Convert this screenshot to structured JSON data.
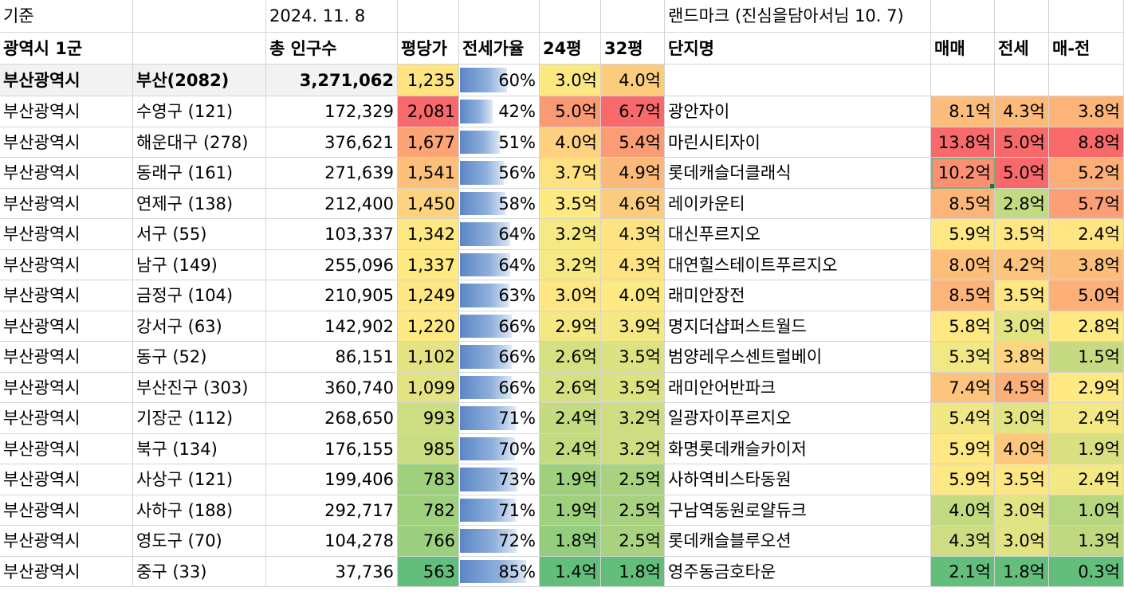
{
  "header": {
    "label_basis": "기준",
    "date": "2024. 11. 8",
    "landmark_note": "랜드마크 (진심을담아서님 10. 7)"
  },
  "columns": [
    "광역시 1군",
    "",
    "총 인구수",
    "평당가",
    "전세가율",
    "24평",
    "32평",
    "단지명",
    "매매",
    "전세",
    "매-전"
  ],
  "summary": {
    "city": "부산광역시",
    "region": "부산(2082)",
    "population": "3,271,062",
    "price_per_pyeong": "1,235",
    "jeonse_rate": "60%",
    "jeonse_value": 0.6,
    "p24": "3.0억",
    "p32": "4.0억"
  },
  "rows": [
    {
      "city": "부산광역시",
      "district": "수영구 (121)",
      "population": "172,329",
      "ppp": "2,081",
      "rate": "42%",
      "rate_value": 0.42,
      "p24": "5.0억",
      "p32": "6.7억",
      "complex": "광안자이",
      "sale": "8.1억",
      "jeonse": "4.3억",
      "diff": "3.8억"
    },
    {
      "city": "부산광역시",
      "district": "해운대구 (278)",
      "population": "376,621",
      "ppp": "1,677",
      "rate": "51%",
      "rate_value": 0.51,
      "p24": "4.0억",
      "p32": "5.4억",
      "complex": "마린시티자이",
      "sale": "13.8억",
      "jeonse": "5.0억",
      "diff": "8.8억"
    },
    {
      "city": "부산광역시",
      "district": "동래구 (161)",
      "population": "271,639",
      "ppp": "1,541",
      "rate": "56%",
      "rate_value": 0.56,
      "p24": "3.7억",
      "p32": "4.9억",
      "complex": "롯데캐슬더클래식",
      "sale": "10.2억",
      "jeonse": "5.0억",
      "diff": "5.2억"
    },
    {
      "city": "부산광역시",
      "district": "연제구 (138)",
      "population": "212,400",
      "ppp": "1,450",
      "rate": "58%",
      "rate_value": 0.58,
      "p24": "3.5억",
      "p32": "4.6억",
      "complex": "레이카운티",
      "sale": "8.5억",
      "jeonse": "2.8억",
      "diff": "5.7억"
    },
    {
      "city": "부산광역시",
      "district": "서구 (55)",
      "population": "103,337",
      "ppp": "1,342",
      "rate": "64%",
      "rate_value": 0.64,
      "p24": "3.2억",
      "p32": "4.3억",
      "complex": "대신푸르지오",
      "sale": "5.9억",
      "jeonse": "3.5억",
      "diff": "2.4억"
    },
    {
      "city": "부산광역시",
      "district": "남구 (149)",
      "population": "255,096",
      "ppp": "1,337",
      "rate": "64%",
      "rate_value": 0.64,
      "p24": "3.2억",
      "p32": "4.3억",
      "complex": "대연힐스테이트푸르지오",
      "sale": "8.0억",
      "jeonse": "4.2억",
      "diff": "3.8억"
    },
    {
      "city": "부산광역시",
      "district": "금정구 (104)",
      "population": "210,905",
      "ppp": "1,249",
      "rate": "63%",
      "rate_value": 0.63,
      "p24": "3.0억",
      "p32": "4.0억",
      "complex": "래미안장전",
      "sale": "8.5억",
      "jeonse": "3.5억",
      "diff": "5.0억"
    },
    {
      "city": "부산광역시",
      "district": "강서구 (63)",
      "population": "142,902",
      "ppp": "1,220",
      "rate": "66%",
      "rate_value": 0.66,
      "p24": "2.9억",
      "p32": "3.9억",
      "complex": "명지더샵퍼스트월드",
      "sale": "5.8억",
      "jeonse": "3.0억",
      "diff": "2.8억"
    },
    {
      "city": "부산광역시",
      "district": "동구 (52)",
      "population": "86,151",
      "ppp": "1,102",
      "rate": "66%",
      "rate_value": 0.66,
      "p24": "2.6억",
      "p32": "3.5억",
      "complex": "범양레우스센트럴베이",
      "sale": "5.3억",
      "jeonse": "3.8억",
      "diff": "1.5억"
    },
    {
      "city": "부산광역시",
      "district": "부산진구 (303)",
      "population": "360,740",
      "ppp": "1,099",
      "rate": "66%",
      "rate_value": 0.66,
      "p24": "2.6억",
      "p32": "3.5억",
      "complex": "래미안어반파크",
      "sale": "7.4억",
      "jeonse": "4.5억",
      "diff": "2.9억"
    },
    {
      "city": "부산광역시",
      "district": "기장군 (112)",
      "population": "268,650",
      "ppp": "993",
      "rate": "71%",
      "rate_value": 0.71,
      "p24": "2.4억",
      "p32": "3.2억",
      "complex": "일광자이푸르지오",
      "sale": "5.4억",
      "jeonse": "3.0억",
      "diff": "2.4억"
    },
    {
      "city": "부산광역시",
      "district": "북구 (134)",
      "population": "176,155",
      "ppp": "985",
      "rate": "70%",
      "rate_value": 0.7,
      "p24": "2.4억",
      "p32": "3.2억",
      "complex": "화명롯데캐슬카이저",
      "sale": "5.9억",
      "jeonse": "4.0억",
      "diff": "1.9억"
    },
    {
      "city": "부산광역시",
      "district": "사상구 (121)",
      "population": "199,406",
      "ppp": "783",
      "rate": "73%",
      "rate_value": 0.73,
      "p24": "1.9억",
      "p32": "2.5억",
      "complex": "사하역비스타동원",
      "sale": "5.9억",
      "jeonse": "3.5억",
      "diff": "2.4억"
    },
    {
      "city": "부산광역시",
      "district": "사하구 (188)",
      "population": "292,717",
      "ppp": "782",
      "rate": "71%",
      "rate_value": 0.71,
      "p24": "1.9억",
      "p32": "2.5억",
      "complex": "구남역동원로얄듀크",
      "sale": "4.0억",
      "jeonse": "3.0억",
      "diff": "1.0억"
    },
    {
      "city": "부산광역시",
      "district": "영도구 (70)",
      "population": "104,278",
      "ppp": "766",
      "rate": "72%",
      "rate_value": 0.72,
      "p24": "1.8억",
      "p32": "2.5억",
      "complex": "롯데캐슬블루오션",
      "sale": "4.3억",
      "jeonse": "3.0억",
      "diff": "1.3억"
    },
    {
      "city": "부산광역시",
      "district": "중구 (33)",
      "population": "37,736",
      "ppp": "563",
      "rate": "85%",
      "rate_value": 0.85,
      "p24": "1.4억",
      "p32": "1.8억",
      "complex": "영주동금호타운",
      "sale": "2.1억",
      "jeonse": "1.8억",
      "diff": "0.3억"
    }
  ],
  "colors": {
    "summary_row_bg": "#f2f2f2",
    "summary_ppp": "#fde381",
    "summary_p24": "#fce883",
    "summary_p32": "#fccc7d",
    "row_colors": [
      {
        "ppp": "#f8696b",
        "p24": "#fa9a75",
        "p32": "#f8696b",
        "sale": "#fcbc7b",
        "jeonse": "#fcba7a",
        "diff": "#fcb479"
      },
      {
        "ppp": "#fba576",
        "p24": "#fdd17f",
        "p32": "#fa9d75",
        "sale": "#f8696b",
        "jeonse": "#f8696b",
        "diff": "#f8696b"
      },
      {
        "ppp": "#fcc07b",
        "p24": "#fee282",
        "p32": "#fcba7a",
        "sale": "#f99071",
        "jeonse": "#f8696b",
        "diff": "#fcae78"
      },
      {
        "ppp": "#fdd37f",
        "p24": "#fee983",
        "p32": "#fccc7e",
        "sale": "#fcb479",
        "jeonse": "#c2da81",
        "diff": "#fb9f76"
      },
      {
        "ppp": "#fee883",
        "p24": "#f6e983",
        "p32": "#fde382",
        "sale": "#fee883",
        "jeonse": "#fee783",
        "diff": "#fee582"
      },
      {
        "ppp": "#fee983",
        "p24": "#f6e983",
        "p32": "#fde382",
        "sale": "#fcbe7b",
        "jeonse": "#fcc37c",
        "diff": "#fcbe7b"
      },
      {
        "ppp": "#fee783",
        "p24": "#fee783",
        "p32": "#feea83",
        "sale": "#fcb479",
        "jeonse": "#fee783",
        "diff": "#fcb078"
      },
      {
        "ppp": "#fee983",
        "p24": "#f4e884",
        "p32": "#f4e884",
        "sale": "#fee883",
        "jeonse": "#e2e383",
        "diff": "#fee983"
      },
      {
        "ppp": "#e4e383",
        "p24": "#d5e082",
        "p32": "#dce182",
        "sale": "#f1e784",
        "jeonse": "#fdd580",
        "diff": "#c6db81"
      },
      {
        "ppp": "#e4e383",
        "p24": "#d5e082",
        "p32": "#dce182",
        "sale": "#fcc47c",
        "jeonse": "#fcb078",
        "diff": "#fee983"
      },
      {
        "ppp": "#cddd82",
        "p24": "#c5db81",
        "p32": "#cedd82",
        "sale": "#f0e784",
        "jeonse": "#e2e383",
        "diff": "#f3e884"
      },
      {
        "ppp": "#cbdd82",
        "p24": "#c5db81",
        "p32": "#cedd82",
        "sale": "#fee883",
        "jeonse": "#fdc87d",
        "diff": "#d9e082"
      },
      {
        "ppp": "#9fd07e",
        "p24": "#9fd07e",
        "p32": "#a8d27f",
        "sale": "#fee883",
        "jeonse": "#fee783",
        "diff": "#f3e884"
      },
      {
        "ppp": "#9fd07e",
        "p24": "#9fd07e",
        "p32": "#a8d27f",
        "sale": "#c4da81",
        "jeonse": "#e2e383",
        "diff": "#b7d680"
      },
      {
        "ppp": "#9ccf7e",
        "p24": "#95cd7e",
        "p32": "#a8d27f",
        "sale": "#cfdd82",
        "jeonse": "#e2e383",
        "diff": "#c0d981"
      },
      {
        "ppp": "#63be7b",
        "p24": "#63be7b",
        "p32": "#63be7b",
        "sale": "#63be7b",
        "jeonse": "#63be7b",
        "diff": "#63be7b"
      }
    ]
  }
}
